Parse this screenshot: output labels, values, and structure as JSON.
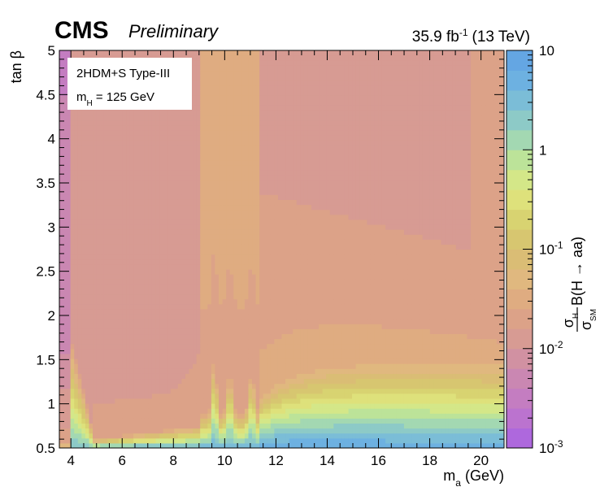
{
  "header": {
    "experiment": "CMS",
    "status": "Preliminary",
    "lumi": "35.9 fb",
    "lumi_exp": "-1",
    "energy": "(13 TeV)"
  },
  "legend": {
    "model": "2HDM+S Type-III",
    "mass_main": "m",
    "mass_sub": "H",
    "mass_value": " = 125 GeV"
  },
  "axes": {
    "x_main": "m",
    "x_sub": "a",
    "x_unit": " (GeV)",
    "y": "tan β",
    "z_sigma": "σ",
    "z_num_sub": "H",
    "z_den_sub": "SM",
    "z_rest": "B(H → aa)"
  },
  "chart_data": {
    "type": "heatmap",
    "title": "",
    "xlabel": "m_a (GeV)",
    "ylabel": "tan β",
    "zlabel": "σ_H/σ_SM B(H → aa)",
    "xlim": [
      3.55,
      20.9
    ],
    "ylim": [
      0.5,
      5.0
    ],
    "zlim": [
      0.001,
      10
    ],
    "zscale": "log",
    "grid": false,
    "x_ticks": [
      "4",
      "6",
      "8",
      "10",
      "12",
      "14",
      "16",
      "18",
      "20"
    ],
    "y_ticks": [
      "0.5",
      "1",
      "1.5",
      "2",
      "2.5",
      "3",
      "3.5",
      "4",
      "4.5",
      "5"
    ],
    "z_ticks": [
      {
        "base": "10",
        "exp": "-3",
        "value": 0.001
      },
      {
        "base": "10",
        "exp": "-2",
        "value": 0.01
      },
      {
        "base": "10",
        "exp": "-1",
        "value": 0.1
      },
      {
        "base": "1",
        "exp": "",
        "value": 1
      },
      {
        "base": "10",
        "exp": "",
        "value": 10
      }
    ],
    "regions": [
      {
        "x_range": [
          3.55,
          3.95
        ],
        "approx_limit_at_high_tanb": 0.005,
        "approx_limit_at_low_tanb": 0.03
      },
      {
        "x_range": [
          3.95,
          4.9
        ],
        "approx_limit_at_high_tanb": 0.01,
        "approx_limit_at_low_tanb": 2
      },
      {
        "x_range": [
          4.9,
          9.0
        ],
        "approx_limit_at_high_tanb": 0.01,
        "approx_limit_at_low_tanb": 0.1
      },
      {
        "x_range": [
          9.0,
          11.3
        ],
        "approx_limit_at_high_tanb": 0.03,
        "approx_limit_at_low_tanb": 3
      },
      {
        "x_range": [
          11.3,
          20.9
        ],
        "approx_limit_at_high_tanb": 0.01,
        "approx_limit_at_low_tanb": 3
      }
    ]
  }
}
